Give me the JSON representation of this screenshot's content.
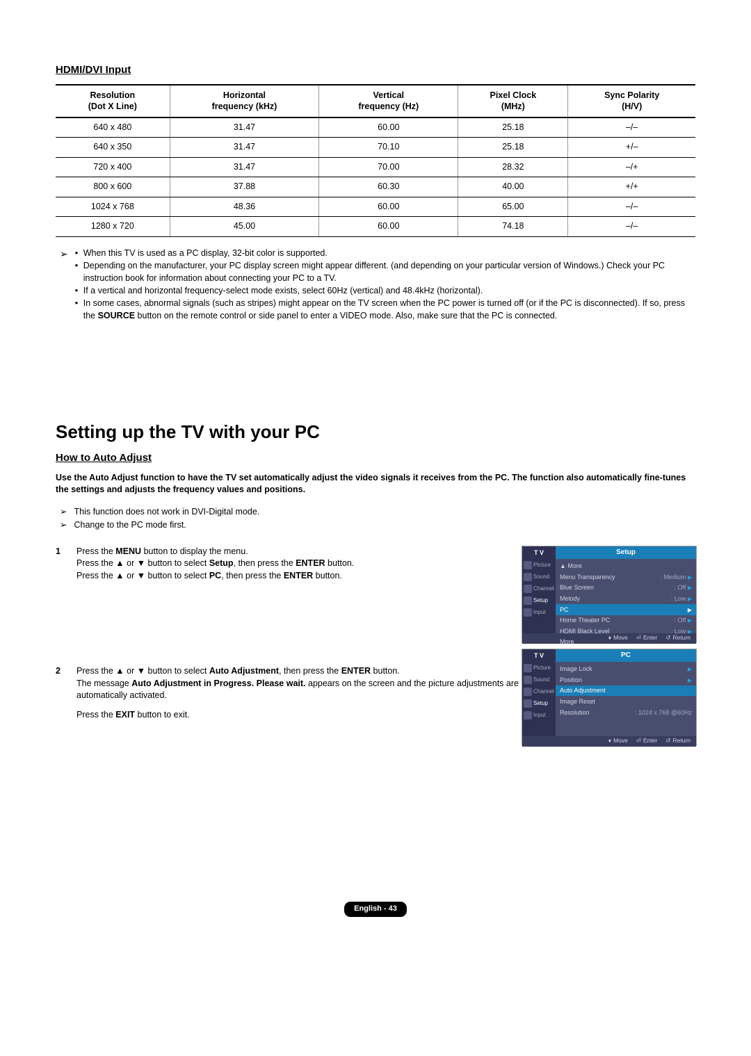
{
  "hdmi": {
    "title": "HDMI/DVI Input",
    "columns": [
      "Resolution\n(Dot X Line)",
      "Horizontal\nfrequency (kHz)",
      "Vertical\nfrequency (Hz)",
      "Pixel Clock\n(MHz)",
      "Sync Polarity\n(H/V)"
    ],
    "rows": [
      [
        "640 x 480",
        "31.47",
        "60.00",
        "25.18",
        "–/–"
      ],
      [
        "640 x 350",
        "31.47",
        "70.10",
        "25.18",
        "+/–"
      ],
      [
        "720 x 400",
        "31.47",
        "70.00",
        "28.32",
        "–/+"
      ],
      [
        "800 x 600",
        "37.88",
        "60.30",
        "40.00",
        "+/+"
      ],
      [
        "1024 x 768",
        "48.36",
        "60.00",
        "65.00",
        "–/–"
      ],
      [
        "1280 x 720",
        "45.00",
        "60.00",
        "74.18",
        "–/–"
      ]
    ],
    "notes": [
      "When this TV is used as a PC display, 32-bit color is supported.",
      "Depending on the manufacturer, your PC display screen might appear different. (and depending on your particular version of Windows.) Check your PC instruction book for information about connecting your PC to a TV.",
      "If a vertical and horizontal frequency-select mode exists, select 60Hz (vertical) and 48.4kHz (horizontal).",
      "In some cases, abnormal signals (such as stripes) might appear on the TV screen when the PC power is turned off (or if the PC is disconnected). If so, press the SOURCE button on the remote control or side panel to enter a VIDEO mode. Also, make sure that the PC is connected."
    ]
  },
  "setup": {
    "heading": "Setting up the TV with your PC",
    "subheading": "How to Auto Adjust",
    "intro": "Use the Auto Adjust function to have the TV set automatically adjust the video signals it receives from the PC. The function also automatically fine-tunes the settings and adjusts the frequency values and positions.",
    "preNotes": [
      "This function does not work in DVI-Digital mode.",
      "Change to the PC mode first."
    ],
    "steps": [
      {
        "num": "1",
        "lines": [
          "Press the MENU button to display the menu.",
          "Press the ▲ or ▼ button to select Setup, then press the ENTER button.",
          "Press the ▲ or ▼ button to select PC, then press the ENTER button."
        ]
      },
      {
        "num": "2",
        "lines": [
          "Press the ▲ or ▼ button to select Auto Adjustment, then press the ENTER button.",
          "The message Auto Adjustment in Progress. Please wait. appears on the screen and the picture adjustments are automatically activated.",
          "",
          "Press the EXIT button to exit."
        ]
      }
    ]
  },
  "osd": {
    "tv": "T V",
    "sideItems": [
      "Picture",
      "Sound",
      "Channel",
      "Setup",
      "Input"
    ],
    "menu1": {
      "title": "Setup",
      "items": [
        {
          "label": "▲ More",
          "val": "",
          "tri": ""
        },
        {
          "label": "Menu Transparency",
          "val": ": Medium",
          "tri": "▶"
        },
        {
          "label": "Blue Screen",
          "val": ": Off",
          "tri": "▶"
        },
        {
          "label": "Melody",
          "val": ": Low",
          "tri": "▶"
        },
        {
          "label": "PC",
          "val": "",
          "tri": "▶",
          "hl": true
        },
        {
          "label": "Home Theater PC",
          "val": ": Off",
          "tri": "▶"
        },
        {
          "label": "HDMI Black Level",
          "val": ": Low",
          "tri": "▶"
        },
        {
          "label": "   More",
          "val": "",
          "tri": ""
        }
      ]
    },
    "menu2": {
      "title": "PC",
      "items": [
        {
          "label": "Image Lock",
          "val": "",
          "tri": "▶"
        },
        {
          "label": "Position",
          "val": "",
          "tri": "▶"
        },
        {
          "label": "Auto Adjustment",
          "val": "",
          "tri": "",
          "hl": true
        },
        {
          "label": "Image Reset",
          "val": "",
          "tri": ""
        },
        {
          "label": "Resolution",
          "val": ": 1024 x 768 @60Hz",
          "tri": ""
        }
      ]
    },
    "footer": {
      "move": "Move",
      "enter": "Enter",
      "return": "Return"
    }
  },
  "pageFoot": "English - 43"
}
